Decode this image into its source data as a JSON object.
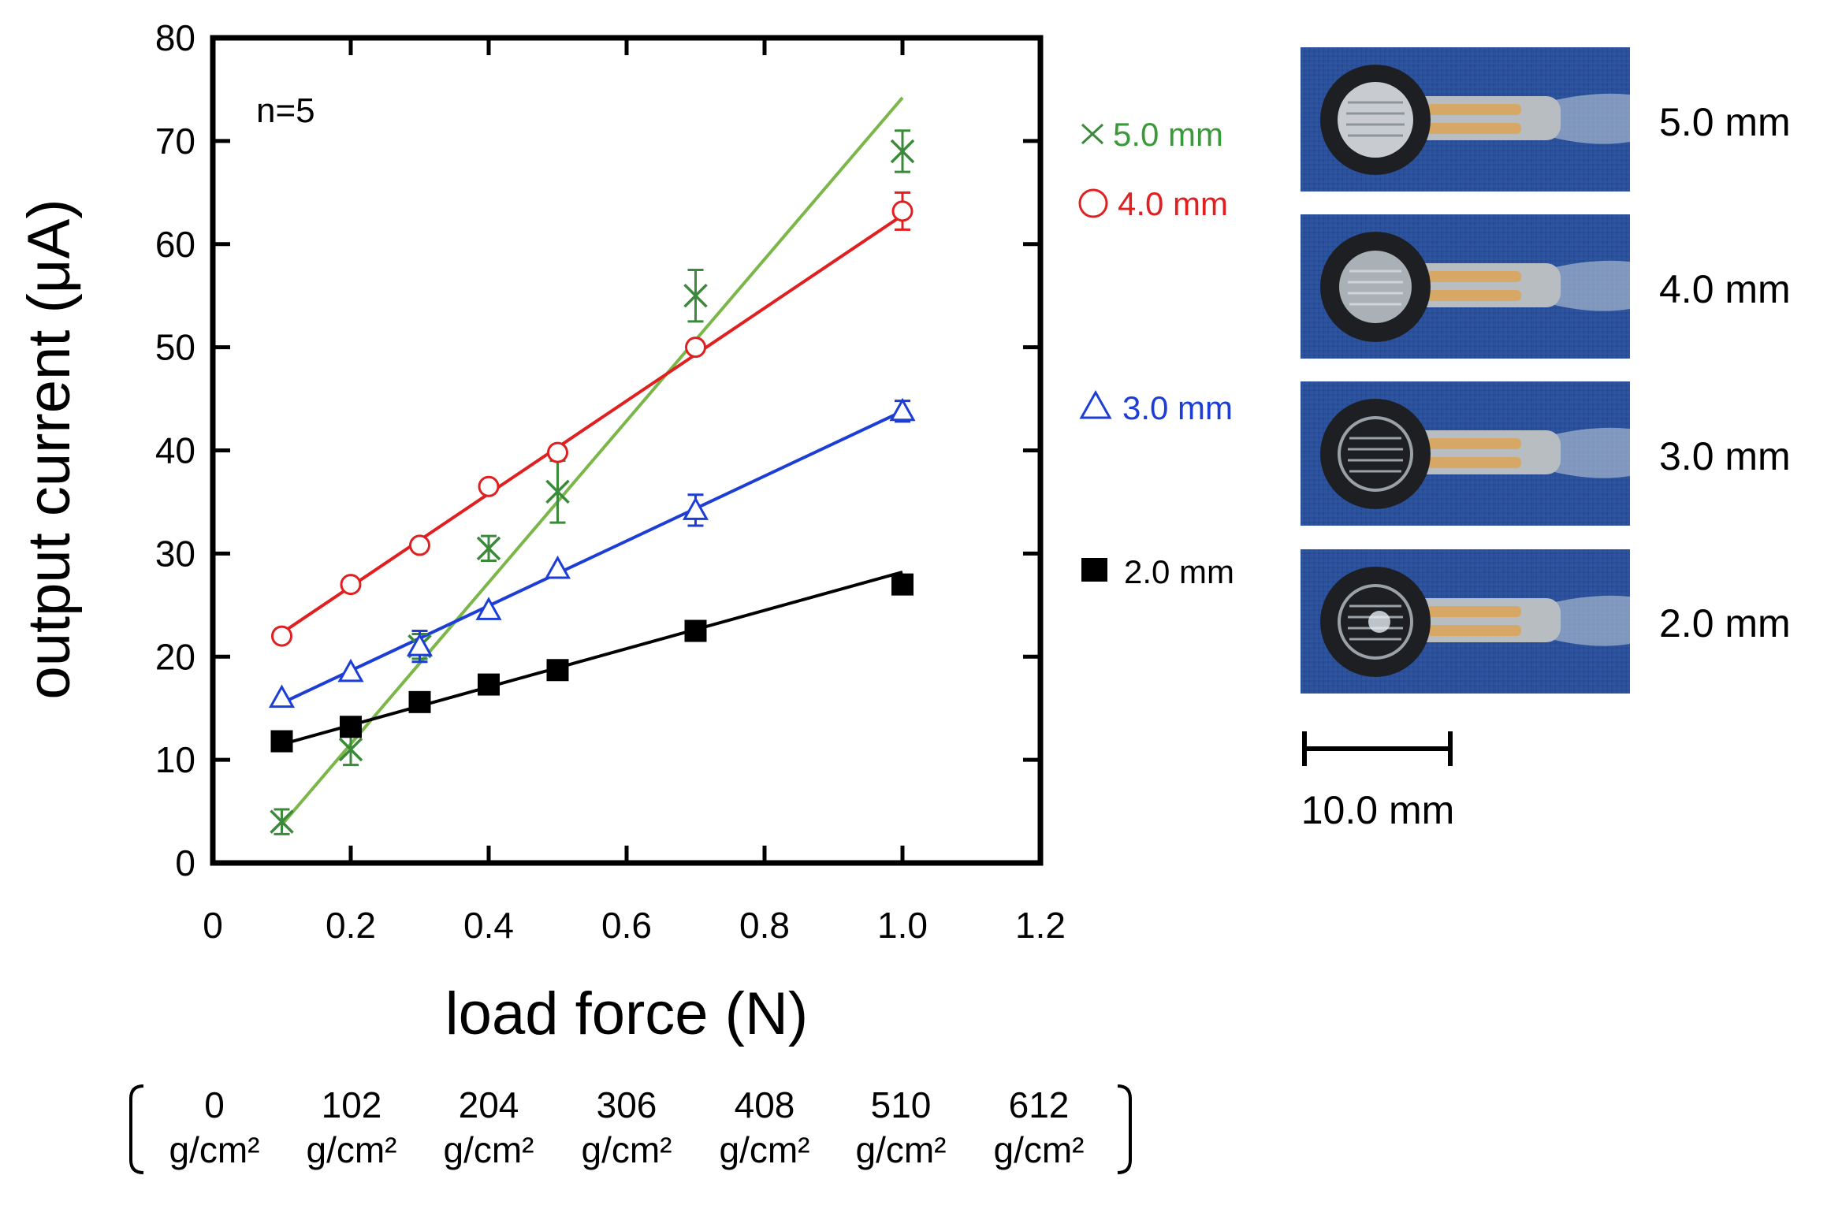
{
  "chart_data": {
    "type": "scatter",
    "xlabel": "load force (N)",
    "ylabel": "output current (μA)",
    "xlim": [
      0,
      1.2
    ],
    "ylim": [
      0,
      80
    ],
    "xticks": [
      0,
      0.2,
      0.4,
      0.6,
      0.8,
      1.0,
      1.2
    ],
    "xtick_labels": [
      "0",
      "0.2",
      "0.4",
      "0.6",
      "0.8",
      "1.0",
      "1.2"
    ],
    "yticks": [
      0,
      10,
      20,
      30,
      40,
      50,
      60,
      70,
      80
    ],
    "ytick_labels": [
      "0",
      "10",
      "20",
      "30",
      "40",
      "50",
      "60",
      "70",
      "80"
    ],
    "annotation": "n=5",
    "x": [
      0.1,
      0.2,
      0.3,
      0.4,
      0.5,
      0.7,
      1.0
    ],
    "series": [
      {
        "name": "5.0 mm",
        "marker": "x",
        "color": "#3a8a3a",
        "line_color": "#7ab648",
        "values": [
          4.0,
          11.0,
          21.0,
          30.5,
          36.0,
          55.0,
          69.0
        ],
        "errors": [
          1.2,
          1.5,
          1.2,
          1.2,
          3.0,
          2.5,
          2.0
        ],
        "fit": [
          [
            0.1,
            3.7
          ],
          [
            1.0,
            74.2
          ]
        ]
      },
      {
        "name": "4.0 mm",
        "marker": "circle",
        "color": "#e02020",
        "line_color": "#e02020",
        "values": [
          22.0,
          27.0,
          30.8,
          36.5,
          39.8,
          50.0,
          63.2
        ],
        "errors": [
          0,
          0,
          0,
          0,
          0,
          0,
          1.8
        ],
        "fit": [
          [
            0.1,
            22.3
          ],
          [
            1.0,
            62.8
          ]
        ]
      },
      {
        "name": "3.0 mm",
        "marker": "triangle",
        "color": "#1c3dd6",
        "line_color": "#1c3dd6",
        "values": [
          16.0,
          18.5,
          21.0,
          24.5,
          28.5,
          34.2,
          43.8
        ],
        "errors": [
          0,
          0,
          1.5,
          0,
          0,
          1.5,
          1.0
        ],
        "fit": [
          [
            0.1,
            15.5
          ],
          [
            1.0,
            43.8
          ]
        ]
      },
      {
        "name": "2.0 mm",
        "marker": "square",
        "color": "#000000",
        "line_color": "#000000",
        "values": [
          11.8,
          13.2,
          15.6,
          17.3,
          18.7,
          22.5,
          27.0
        ],
        "errors": [
          0,
          0,
          0,
          0,
          0,
          0.8,
          0.8
        ],
        "fit": [
          [
            0.1,
            11.5
          ],
          [
            1.0,
            28.2
          ]
        ]
      }
    ],
    "secondary_axis": {
      "values": [
        "0",
        "102",
        "204",
        "306",
        "408",
        "510",
        "612"
      ],
      "unit": "g/cm²"
    }
  },
  "photos": {
    "labels": [
      "5.0 mm",
      "4.0 mm",
      "3.0 mm",
      "2.0 mm"
    ],
    "scale_bar_label": "10.0 mm"
  }
}
